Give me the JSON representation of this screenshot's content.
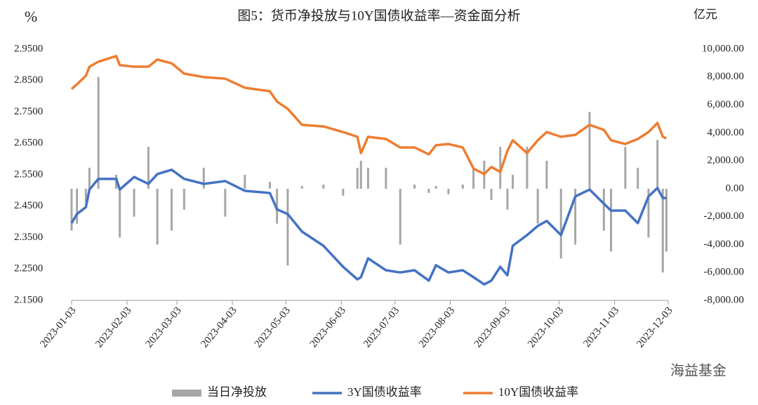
{
  "chart_data": {
    "type": "bar-line",
    "title": "图5：货币净投放与10Y国债收益率—资金面分析",
    "y_label": "%",
    "y2_label": "亿元",
    "watermark": "海益基金",
    "x": [
      "2023-01-03",
      "2023-01-06",
      "2023-01-11",
      "2023-01-13",
      "2023-01-18",
      "2023-01-28",
      "2023-01-30",
      "2023-02-07",
      "2023-02-15",
      "2023-02-20",
      "2023-02-28",
      "2023-03-07",
      "2023-03-18",
      "2023-03-30",
      "2023-04-10",
      "2023-04-24",
      "2023-04-28",
      "2023-05-04",
      "2023-05-12",
      "2023-05-24",
      "2023-06-04",
      "2023-06-12",
      "2023-06-14",
      "2023-06-18",
      "2023-06-28",
      "2023-07-06",
      "2023-07-14",
      "2023-07-22",
      "2023-07-26",
      "2023-08-02",
      "2023-08-10",
      "2023-08-16",
      "2023-08-22",
      "2023-08-26",
      "2023-08-31",
      "2023-09-04",
      "2023-09-07",
      "2023-09-15",
      "2023-09-21",
      "2023-09-26",
      "2023-10-04",
      "2023-10-12",
      "2023-10-20",
      "2023-10-28",
      "2023-11-01",
      "2023-11-09",
      "2023-11-16",
      "2023-11-22",
      "2023-11-27",
      "2023-11-30",
      "2023-12-02"
    ],
    "series": [
      {
        "name": "当日净投放",
        "color": "#a6a6a6",
        "axis": "y2",
        "kind": "bar",
        "values": [
          -3000,
          -2500,
          -1000,
          1500,
          8000,
          1000,
          -3500,
          -2000,
          3000,
          -4000,
          -3000,
          -1500,
          1500,
          -2000,
          1000,
          500,
          -2500,
          -5500,
          200,
          300,
          -500,
          1500,
          2000,
          1500,
          1500,
          -4000,
          300,
          -300,
          200,
          -400,
          300,
          1500,
          2000,
          -800,
          3000,
          -1500,
          1000,
          3000,
          -2500,
          2000,
          -5000,
          -4000,
          5500,
          -3000,
          -4500,
          3000,
          1500,
          -3500,
          3500,
          -6000,
          -4500
        ]
      },
      {
        "name": "3Y国债收益率",
        "color": "#4472c4",
        "kind": "line",
        "values": [
          2.396,
          2.425,
          2.447,
          2.503,
          2.537,
          2.537,
          2.503,
          2.543,
          2.521,
          2.552,
          2.566,
          2.537,
          2.521,
          2.53,
          2.499,
          2.492,
          2.44,
          2.425,
          2.369,
          2.324,
          2.257,
          2.217,
          2.224,
          2.284,
          2.246,
          2.239,
          2.246,
          2.213,
          2.262,
          2.239,
          2.246,
          2.224,
          2.201,
          2.213,
          2.257,
          2.23,
          2.324,
          2.358,
          2.387,
          2.403,
          2.358,
          2.481,
          2.503,
          2.458,
          2.436,
          2.436,
          2.396,
          2.481,
          2.508,
          2.476,
          2.476
        ]
      },
      {
        "name": "10Y国债收益率",
        "color": "#ed7d31",
        "kind": "line",
        "values": [
          2.823,
          2.838,
          2.865,
          2.894,
          2.91,
          2.928,
          2.899,
          2.894,
          2.894,
          2.917,
          2.905,
          2.872,
          2.861,
          2.856,
          2.827,
          2.816,
          2.783,
          2.76,
          2.709,
          2.704,
          2.686,
          2.671,
          2.619,
          2.671,
          2.664,
          2.637,
          2.637,
          2.615,
          2.644,
          2.648,
          2.637,
          2.57,
          2.552,
          2.575,
          2.559,
          2.626,
          2.66,
          2.619,
          2.66,
          2.686,
          2.671,
          2.677,
          2.709,
          2.693,
          2.66,
          2.648,
          2.664,
          2.686,
          2.715,
          2.671,
          2.666
        ]
      }
    ],
    "xlim": [
      "2023-01-03",
      "2023-12-03"
    ],
    "xticks": [
      "2023-01-03",
      "2023-02-03",
      "2023-03-03",
      "2023-04-03",
      "2023-05-03",
      "2023-06-03",
      "2023-07-03",
      "2023-08-03",
      "2023-09-03",
      "2023-10-03",
      "2023-11-03",
      "2023-12-03"
    ],
    "ylim": [
      2.15,
      2.95
    ],
    "yticks": [
      {
        "value": 2.15,
        "label": "2.1500"
      },
      {
        "value": 2.25,
        "label": "2.2500"
      },
      {
        "value": 2.35,
        "label": "2.3500"
      },
      {
        "value": 2.45,
        "label": "2.4500"
      },
      {
        "value": 2.55,
        "label": "2.5500"
      },
      {
        "value": 2.65,
        "label": "2.6500"
      },
      {
        "value": 2.75,
        "label": "2.7500"
      },
      {
        "value": 2.85,
        "label": "2.8500"
      },
      {
        "value": 2.95,
        "label": "2.9500"
      }
    ],
    "y2lim": [
      -8000,
      10000
    ],
    "y2ticks": [
      {
        "value": -8000,
        "label": "-8,000.00"
      },
      {
        "value": -6000,
        "label": "-6,000.00"
      },
      {
        "value": -4000,
        "label": "-4,000.00"
      },
      {
        "value": -2000,
        "label": "-2,000.00"
      },
      {
        "value": 0,
        "label": "0.00"
      },
      {
        "value": 2000,
        "label": "2,000.00"
      },
      {
        "value": 4000,
        "label": "4,000.00"
      },
      {
        "value": 6000,
        "label": "6,000.00"
      },
      {
        "value": 8000,
        "label": "8,000.00"
      },
      {
        "value": 10000,
        "label": "10,000.00"
      }
    ],
    "legend": "bottom"
  }
}
